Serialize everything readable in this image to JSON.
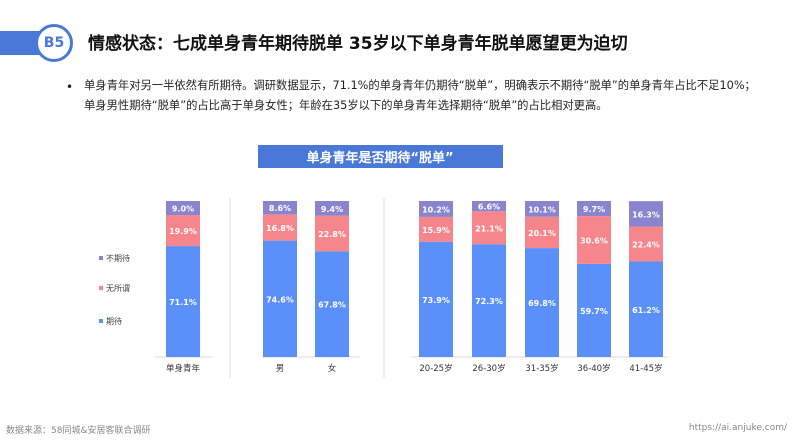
{
  "badge": "B5",
  "title": "情感状态：七成单身青年期待脱单 35岁以下单身青年脱单愿望更为迫切",
  "bullet": "•",
  "description": "单身青年对另一半依然有所期待。调研数据显示，71.1%的单身青年仍期待“脱单”，明确表示不期待“脱单”的单身青年占比不足10%；单身男性期待“脱单”的占比高于单身女性；年龄在35岁以下的单身青年选择期待“脱单”的占比相对更高。",
  "footer": {
    "source": "数据来源：58同城&安居客联合调研",
    "url": "https://ai.anjuke.com/"
  },
  "colors": {
    "accent": "#4a78d9",
    "期待": "#5b8ff9",
    "无所谓": "#f7868c",
    "不期待": "#8a84cf"
  },
  "chart_data": {
    "type": "bar",
    "stacked": true,
    "percent": true,
    "title": "单身青年是否期待“脱单”",
    "legend_position": "left",
    "categories": [
      "单身青年",
      "男",
      "女",
      "20-25岁",
      "26-30岁",
      "31-35岁",
      "36-40岁",
      "41-45岁"
    ],
    "groups": [
      [
        "单身青年"
      ],
      [
        "男",
        "女"
      ],
      [
        "20-25岁",
        "26-30岁",
        "31-35岁",
        "36-40岁",
        "41-45岁"
      ]
    ],
    "series": [
      {
        "name": "期待",
        "values": [
          71.1,
          74.6,
          67.8,
          73.9,
          72.3,
          69.8,
          59.7,
          61.2
        ],
        "labels": [
          "71.1%",
          "74.6%",
          "67.8%",
          "73.9%",
          "72.3%",
          "69.8%",
          "59.7%",
          "61.2%"
        ]
      },
      {
        "name": "无所谓",
        "values": [
          19.9,
          16.8,
          22.8,
          15.9,
          21.1,
          20.1,
          30.6,
          22.4
        ],
        "labels": [
          "19.9%",
          "16.8%",
          "22.8%",
          "15.9%",
          "21.1%",
          "20.1%",
          "30.6%",
          "22.4%"
        ]
      },
      {
        "name": "不期待",
        "values": [
          9.0,
          8.6,
          9.4,
          10.2,
          6.6,
          10.1,
          9.7,
          16.3
        ],
        "labels": [
          "9.0%",
          "8.6%",
          "9.4%",
          "10.2%",
          "6.6%",
          "10.1%",
          "9.7%",
          "16.3%"
        ]
      }
    ],
    "legend_order": [
      "不期待",
      "无所谓",
      "期待"
    ],
    "ylim": [
      0,
      100
    ],
    "grid": false
  }
}
